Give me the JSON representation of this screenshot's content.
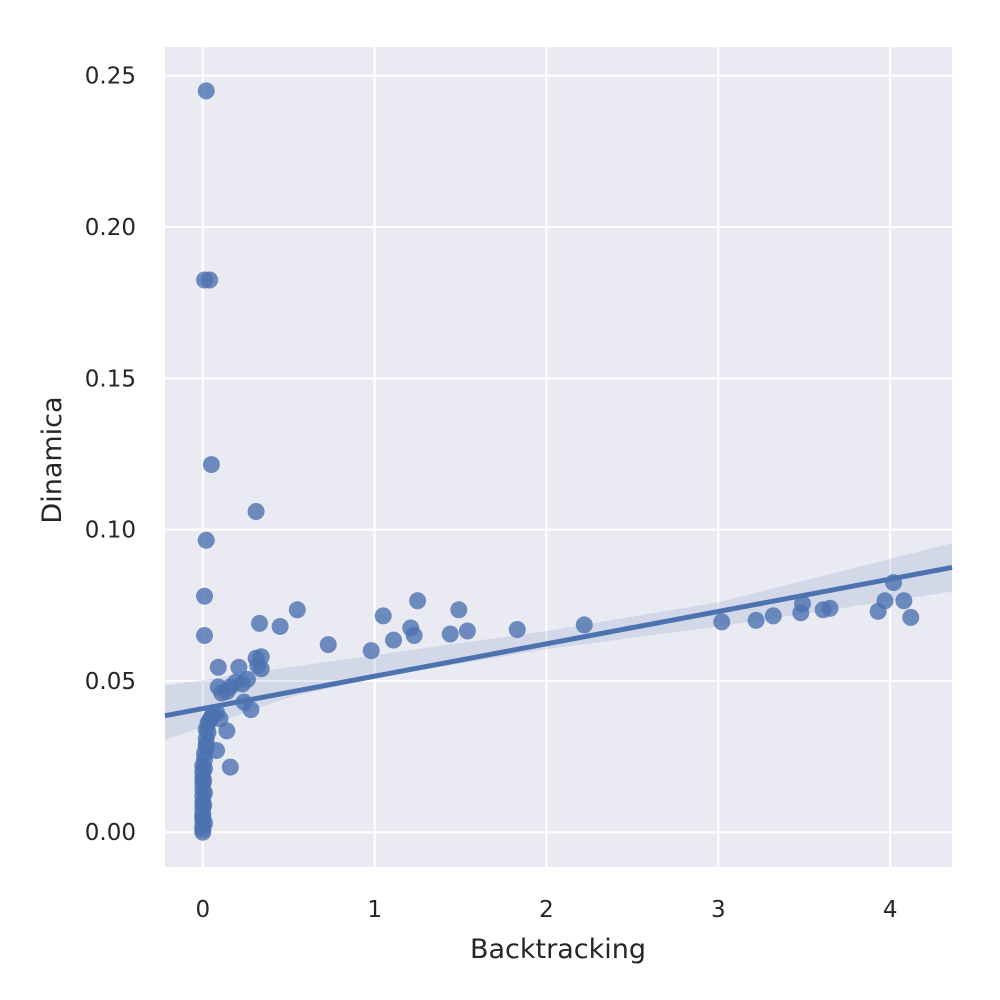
{
  "chart_data": {
    "type": "scatter",
    "xlabel": "Backtracking",
    "ylabel": "Dinamica",
    "xlim": [
      -0.22,
      4.36
    ],
    "ylim": [
      -0.0115,
      0.2595
    ],
    "xticks": [
      0,
      1,
      2,
      3,
      4
    ],
    "xtick_labels": [
      "0",
      "1",
      "2",
      "3",
      "4"
    ],
    "yticks": [
      0.0,
      0.05,
      0.1,
      0.15,
      0.2,
      0.25
    ],
    "ytick_labels": [
      "0.00",
      "0.05",
      "0.10",
      "0.15",
      "0.20",
      "0.25"
    ],
    "grid": true,
    "background": "#eaeaf2",
    "grid_color": "#ffffff",
    "point_color": "#4c72b0",
    "point_opacity": 0.8,
    "series": [
      {
        "points": [
          [
            0.02,
            0.245
          ],
          [
            0.01,
            0.1825
          ],
          [
            0.04,
            0.1825
          ],
          [
            0.05,
            0.1215
          ],
          [
            0.02,
            0.0965
          ],
          [
            0.01,
            0.078
          ],
          [
            0.01,
            0.065
          ],
          [
            0.31,
            0.106
          ],
          [
            0.33,
            0.069
          ],
          [
            0.45,
            0.068
          ],
          [
            0.55,
            0.0735
          ],
          [
            0.73,
            0.062
          ],
          [
            0.98,
            0.06
          ],
          [
            1.05,
            0.0715
          ],
          [
            1.11,
            0.0635
          ],
          [
            1.21,
            0.0675
          ],
          [
            1.23,
            0.065
          ],
          [
            1.25,
            0.0765
          ],
          [
            1.44,
            0.0655
          ],
          [
            1.49,
            0.0735
          ],
          [
            1.54,
            0.0665
          ],
          [
            1.83,
            0.067
          ],
          [
            2.22,
            0.0685
          ],
          [
            3.02,
            0.0695
          ],
          [
            3.22,
            0.07
          ],
          [
            3.32,
            0.0715
          ],
          [
            3.48,
            0.0725
          ],
          [
            3.49,
            0.0755
          ],
          [
            3.61,
            0.0735
          ],
          [
            3.65,
            0.074
          ],
          [
            3.93,
            0.073
          ],
          [
            3.97,
            0.0765
          ],
          [
            4.02,
            0.0825
          ],
          [
            4.08,
            0.0765
          ],
          [
            4.12,
            0.071
          ],
          [
            0.09,
            0.0545
          ],
          [
            0.09,
            0.048
          ],
          [
            0.11,
            0.046
          ],
          [
            0.14,
            0.0465
          ],
          [
            0.16,
            0.048
          ],
          [
            0.19,
            0.0495
          ],
          [
            0.21,
            0.0545
          ],
          [
            0.23,
            0.049
          ],
          [
            0.24,
            0.043
          ],
          [
            0.26,
            0.0505
          ],
          [
            0.28,
            0.0405
          ],
          [
            0.31,
            0.0575
          ],
          [
            0.32,
            0.055
          ],
          [
            0.34,
            0.058
          ],
          [
            0.34,
            0.054
          ],
          [
            0.08,
            0.0395
          ],
          [
            0.1,
            0.0375
          ],
          [
            0.14,
            0.0335
          ],
          [
            0.16,
            0.0215
          ],
          [
            0.08,
            0.027
          ],
          [
            0.03,
            0.036
          ],
          [
            0.02,
            0.034
          ],
          [
            0.02,
            0.031
          ],
          [
            0.02,
            0.029
          ],
          [
            0.01,
            0.026
          ],
          [
            0.01,
            0.024
          ],
          [
            0.0,
            0.022
          ],
          [
            0.0,
            0.02
          ],
          [
            0.0,
            0.018
          ],
          [
            0.0,
            0.016
          ],
          [
            0.0,
            0.014
          ],
          [
            0.0,
            0.012
          ],
          [
            0.0,
            0.01
          ],
          [
            0.0,
            0.008
          ],
          [
            0.0,
            0.006
          ],
          [
            0.0,
            0.004
          ],
          [
            0.0,
            0.002
          ],
          [
            0.0,
            0.0
          ],
          [
            0.01,
            0.003
          ],
          [
            0.01,
            0.013
          ],
          [
            0.005,
            0.017
          ],
          [
            0.005,
            0.009
          ],
          [
            0.0,
            0.001
          ],
          [
            0.04,
            0.037
          ],
          [
            0.05,
            0.038
          ],
          [
            0.06,
            0.039
          ],
          [
            0.03,
            0.033
          ],
          [
            0.02,
            0.028
          ],
          [
            0.01,
            0.021
          ],
          [
            0.0,
            0.005
          ]
        ]
      }
    ],
    "regression": {
      "x_start": -0.22,
      "x_end": 4.36,
      "line": [
        [
          -0.22,
          0.0385
        ],
        [
          4.36,
          0.0875
        ]
      ],
      "band_lower": [
        [
          -0.22,
          0.0305
        ],
        [
          0.5,
          0.0445
        ],
        [
          1.0,
          0.051
        ],
        [
          2.0,
          0.0605
        ],
        [
          3.0,
          0.068
        ],
        [
          4.36,
          0.0795
        ]
      ],
      "band_upper": [
        [
          -0.22,
          0.0485
        ],
        [
          0.5,
          0.0545
        ],
        [
          1.0,
          0.0585
        ],
        [
          2.0,
          0.0665
        ],
        [
          3.0,
          0.076
        ],
        [
          4.36,
          0.0955
        ]
      ]
    }
  }
}
